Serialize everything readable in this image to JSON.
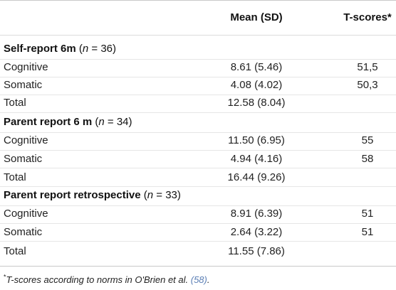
{
  "table": {
    "header": {
      "col1": "",
      "mean": "Mean (SD)",
      "tscore": "T-scores*"
    },
    "sections": [
      {
        "title": "Self-report 6m",
        "n_prefix": " (",
        "n_var": "n",
        "n_rest": " = 36)",
        "rows": [
          {
            "label": "Cognitive",
            "mean": "8.61 (5.46)",
            "tscore": "51,5"
          },
          {
            "label": "Somatic",
            "mean": "4.08 (4.02)",
            "tscore": "50,3"
          },
          {
            "label": "Total",
            "mean": "12.58 (8.04)",
            "tscore": ""
          }
        ]
      },
      {
        "title": "Parent report 6 m",
        "n_prefix": " (",
        "n_var": "n",
        "n_rest": " = 34)",
        "rows": [
          {
            "label": "Cognitive",
            "mean": "11.50 (6.95)",
            "tscore": "55"
          },
          {
            "label": "Somatic",
            "mean": "4.94 (4.16)",
            "tscore": "58"
          },
          {
            "label": "Total",
            "mean": "16.44 (9.26)",
            "tscore": ""
          }
        ]
      },
      {
        "title": "Parent report retrospective",
        "n_prefix": " (",
        "n_var": "n",
        "n_rest": " = 33)",
        "rows": [
          {
            "label": "Cognitive",
            "mean": "8.91 (6.39)",
            "tscore": "51"
          },
          {
            "label": "Somatic",
            "mean": "2.64 (3.22)",
            "tscore": "51"
          },
          {
            "label": "Total",
            "mean": "11.55 (7.86)",
            "tscore": ""
          }
        ]
      }
    ]
  },
  "footnote": {
    "marker": "*",
    "text": "T-scores according to norms in O'Brien et al. ",
    "ref": "(58)",
    "end": "."
  }
}
